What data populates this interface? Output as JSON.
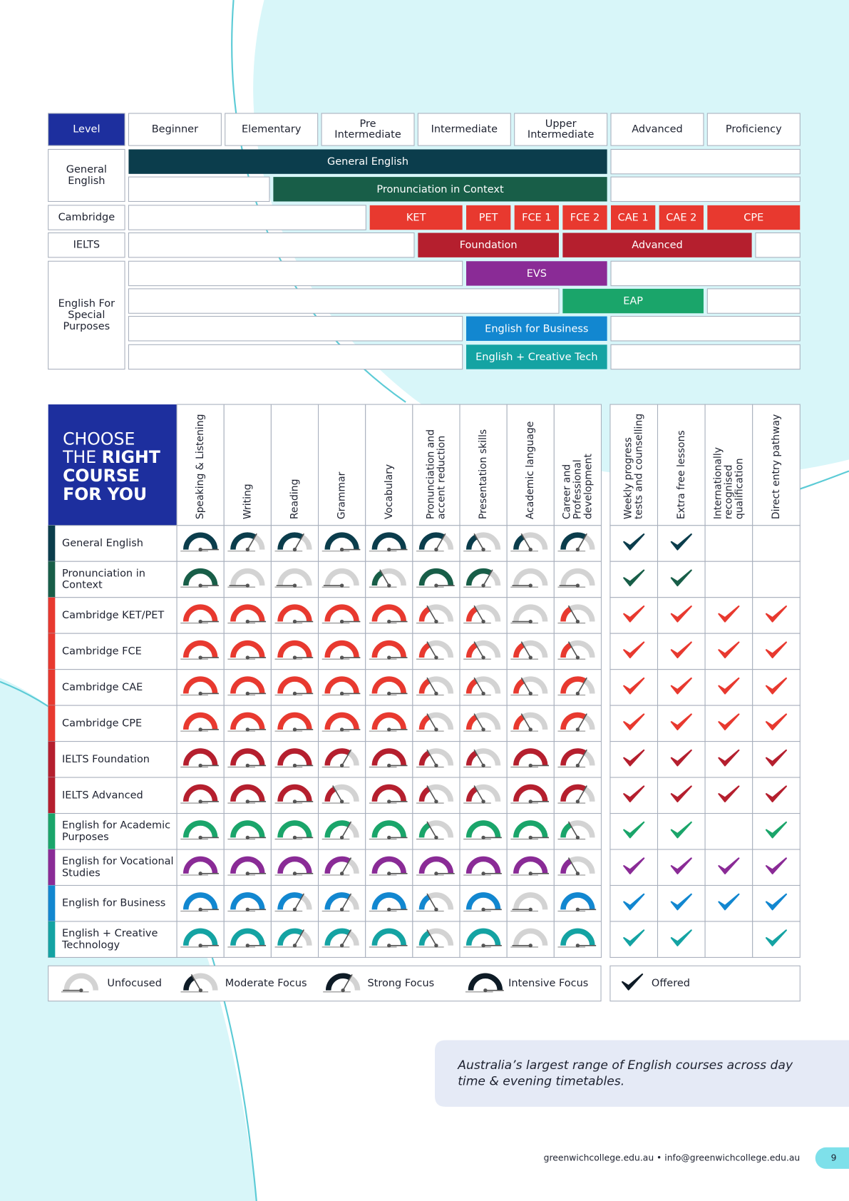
{
  "top": {
    "level_label": "Level",
    "levels": [
      [
        "Beginner"
      ],
      [
        "Elementary"
      ],
      [
        "Pre",
        "Intermediate"
      ],
      [
        "Intermediate"
      ],
      [
        "Upper",
        "Intermediate"
      ],
      [
        "Advanced"
      ],
      [
        "Proficiency"
      ]
    ],
    "groups": [
      {
        "label": [
          "General",
          "English"
        ],
        "rows": [
          [
            {
              "label": "General English",
              "color": "#0b3d4c"
            }
          ],
          [
            {
              "label": "Pronunciation in Context",
              "color": "#185e48"
            }
          ]
        ]
      },
      {
        "label": [
          "Cambridge"
        ],
        "rows": [
          [
            {
              "label": "KET",
              "color": "#e8392f"
            },
            {
              "label": "PET",
              "color": "#e8392f"
            },
            {
              "label": "FCE 1",
              "color": "#e8392f"
            },
            {
              "label": "FCE 2",
              "color": "#e8392f"
            },
            {
              "label": "CAE 1",
              "color": "#e8392f"
            },
            {
              "label": "CAE 2",
              "color": "#e8392f"
            },
            {
              "label": "CPE",
              "color": "#e8392f"
            }
          ]
        ]
      },
      {
        "label": [
          "IELTS"
        ],
        "rows": [
          [
            {
              "label": "Foundation",
              "color": "#b51f2e"
            },
            {
              "label": "Advanced",
              "color": "#b51f2e"
            }
          ]
        ]
      },
      {
        "label": [
          "English For",
          "Special",
          "Purposes"
        ],
        "rows": [
          [
            {
              "label": "EVS",
              "color": "#8a2b96"
            }
          ],
          [
            {
              "label": "EAP",
              "color": "#1aa56a"
            }
          ],
          [
            {
              "label": "English for Business",
              "color": "#1287d0"
            }
          ],
          [
            {
              "label": "English + Creative Tech",
              "color": "#14a3a3"
            }
          ]
        ]
      }
    ]
  },
  "matrix": {
    "heading": [
      "CHOOSE",
      "THE ",
      "RIGHT",
      "COURSE",
      "FOR YOU"
    ],
    "skills": [
      [
        "Speaking & Listening"
      ],
      [
        "Writing"
      ],
      [
        "Reading"
      ],
      [
        "Grammar"
      ],
      [
        "Vocabulary"
      ],
      [
        "Pronunciation and",
        "accent reduction"
      ],
      [
        "Presentation skills"
      ],
      [
        "Academic language"
      ],
      [
        "Career and",
        "Professional",
        "development"
      ]
    ],
    "features": [
      [
        "Weekly progress",
        "tests and counselling"
      ],
      [
        "Extra free lessons"
      ],
      [
        "Internationally",
        "recognised",
        "qualification"
      ],
      [
        "Direct entry pathway"
      ]
    ],
    "courses": [
      {
        "name": [
          "General English"
        ],
        "color": "#0b3d4c",
        "levels": [
          3,
          2,
          2,
          3,
          3,
          2,
          1,
          1,
          2
        ],
        "offered": [
          true,
          true,
          false,
          false
        ]
      },
      {
        "name": [
          "Pronunciation in",
          "Context"
        ],
        "color": "#185e48",
        "levels": [
          3,
          0,
          0,
          0,
          1,
          3,
          2,
          0,
          0
        ],
        "offered": [
          true,
          true,
          false,
          false
        ]
      },
      {
        "name": [
          "Cambridge KET/PET"
        ],
        "color": "#e8392f",
        "levels": [
          3,
          3,
          3,
          3,
          3,
          1,
          1,
          0,
          1
        ],
        "offered": [
          true,
          true,
          true,
          true
        ]
      },
      {
        "name": [
          "Cambridge FCE"
        ],
        "color": "#e8392f",
        "levels": [
          3,
          3,
          3,
          3,
          3,
          1,
          1,
          1,
          1
        ],
        "offered": [
          true,
          true,
          true,
          true
        ]
      },
      {
        "name": [
          "Cambridge CAE"
        ],
        "color": "#e8392f",
        "levels": [
          3,
          3,
          3,
          3,
          3,
          1,
          1,
          1,
          2
        ],
        "offered": [
          true,
          true,
          true,
          true
        ]
      },
      {
        "name": [
          "Cambridge CPE"
        ],
        "color": "#e8392f",
        "levels": [
          3,
          3,
          3,
          3,
          3,
          1,
          1,
          1,
          2
        ],
        "offered": [
          true,
          true,
          true,
          true
        ]
      },
      {
        "name": [
          "IELTS Foundation"
        ],
        "color": "#b51f2e",
        "levels": [
          3,
          3,
          3,
          2,
          3,
          1,
          1,
          3,
          2
        ],
        "offered": [
          true,
          true,
          true,
          true
        ]
      },
      {
        "name": [
          "IELTS Advanced"
        ],
        "color": "#b51f2e",
        "levels": [
          3,
          3,
          3,
          1,
          3,
          1,
          1,
          3,
          2
        ],
        "offered": [
          true,
          true,
          true,
          true
        ]
      },
      {
        "name": [
          "English for Academic",
          "Purposes"
        ],
        "color": "#1aa56a",
        "levels": [
          3,
          3,
          3,
          2,
          3,
          1,
          3,
          3,
          1
        ],
        "offered": [
          true,
          true,
          false,
          true
        ]
      },
      {
        "name": [
          "English for Vocational",
          "Studies"
        ],
        "color": "#8a2b96",
        "levels": [
          3,
          3,
          3,
          2,
          3,
          3,
          3,
          3,
          1
        ],
        "offered": [
          true,
          true,
          true,
          true
        ]
      },
      {
        "name": [
          "English for Business"
        ],
        "color": "#1287d0",
        "levels": [
          3,
          3,
          2,
          2,
          3,
          1,
          3,
          0,
          3
        ],
        "offered": [
          true,
          true,
          true,
          true
        ]
      },
      {
        "name": [
          "English + Creative",
          "Technology"
        ],
        "color": "#14a3a3",
        "levels": [
          3,
          3,
          2,
          2,
          3,
          1,
          3,
          0,
          3
        ],
        "offered": [
          true,
          true,
          false,
          true
        ]
      }
    ]
  },
  "legend": {
    "levels": [
      "Unfocused",
      "Moderate Focus",
      "Strong Focus",
      "Intensive Focus"
    ],
    "offered": "Offered"
  },
  "quote": [
    "Australia’s largest range of English courses across day",
    "time & evening timetables."
  ],
  "footer": {
    "contact": "greenwichcollege.edu.au  •  info@greenwichcollege.edu.au",
    "page": "9"
  }
}
